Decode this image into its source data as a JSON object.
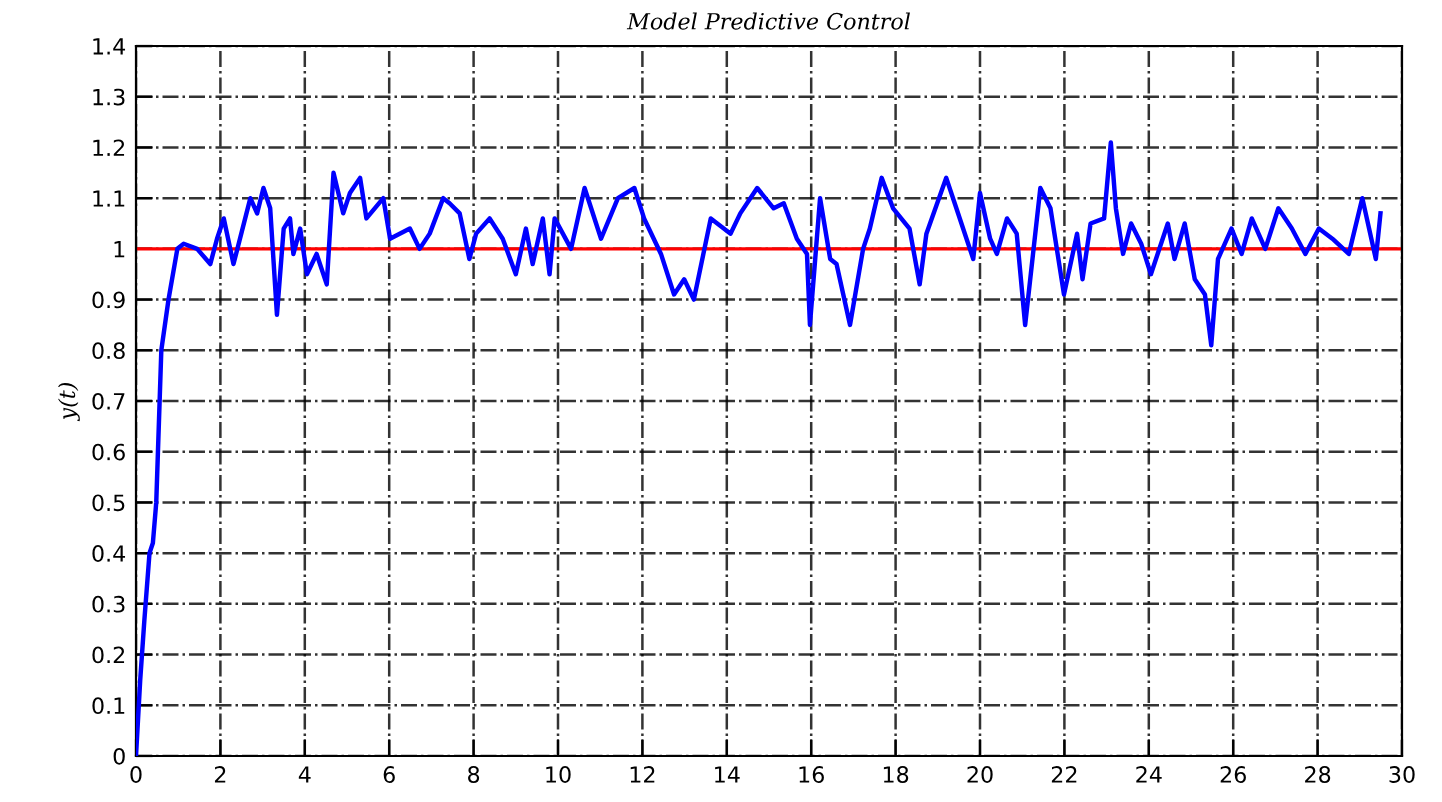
{
  "chart_data": {
    "type": "line",
    "title": "Model Predictive Control",
    "ylabel": "y(t)",
    "series": [
      {
        "color": "#0000ff",
        "x": [
          0,
          0.1,
          0.2,
          0.32,
          0.4,
          0.48,
          0.6,
          0.77,
          0.98,
          1.13,
          1.45,
          1.76,
          1.92,
          2.08,
          2.31,
          2.71,
          2.87,
          3.02,
          3.18,
          3.34,
          3.5,
          3.65,
          3.73,
          3.89,
          4.05,
          4.28,
          4.52,
          4.68,
          4.91,
          5.07,
          5.31,
          5.46,
          5.86,
          6.02,
          6.49,
          6.72,
          6.96,
          7.28,
          7.43,
          7.67,
          7.9,
          8.06,
          8.38,
          8.69,
          9.0,
          9.24,
          9.4,
          9.64,
          9.8,
          9.92,
          10.31,
          10.63,
          11.02,
          11.42,
          11.81,
          12.04,
          12.44,
          12.75,
          12.99,
          13.22,
          13.62,
          14.09,
          14.32,
          14.72,
          15.11,
          15.35,
          15.66,
          15.9,
          15.97,
          16.21,
          16.45,
          16.6,
          16.92,
          17.23,
          17.39,
          17.67,
          17.94,
          18.33,
          18.57,
          18.73,
          19.2,
          19.44,
          19.84,
          20.0,
          20.24,
          20.4,
          20.64,
          20.87,
          21.07,
          21.43,
          21.67,
          21.99,
          22.3,
          22.43,
          22.62,
          22.94,
          23.1,
          23.22,
          23.39,
          23.58,
          23.82,
          24.05,
          24.45,
          24.61,
          24.85,
          25.09,
          25.33,
          25.48,
          25.64,
          25.96,
          26.2,
          26.44,
          26.76,
          27.07,
          27.39,
          27.71,
          28.03,
          28.35,
          28.74,
          29.06,
          29.38,
          29.49
        ],
        "values": [
          0,
          0.15,
          0.27,
          0.4,
          0.42,
          0.5,
          0.8,
          0.9,
          1.0,
          1.01,
          1.0,
          0.97,
          1.02,
          1.06,
          0.97,
          1.1,
          1.07,
          1.12,
          1.08,
          0.87,
          1.04,
          1.06,
          0.99,
          1.04,
          0.95,
          0.99,
          0.93,
          1.15,
          1.07,
          1.11,
          1.14,
          1.06,
          1.1,
          1.02,
          1.04,
          1.0,
          1.03,
          1.1,
          1.09,
          1.07,
          0.98,
          1.03,
          1.06,
          1.02,
          0.95,
          1.04,
          0.97,
          1.06,
          0.95,
          1.06,
          1.0,
          1.12,
          1.02,
          1.1,
          1.12,
          1.06,
          0.99,
          0.91,
          0.94,
          0.9,
          1.06,
          1.03,
          1.07,
          1.12,
          1.08,
          1.09,
          1.02,
          0.99,
          0.85,
          1.1,
          0.98,
          0.97,
          0.85,
          1.0,
          1.04,
          1.14,
          1.08,
          1.04,
          0.93,
          1.03,
          1.14,
          1.08,
          0.98,
          1.11,
          1.02,
          0.99,
          1.06,
          1.03,
          0.85,
          1.12,
          1.08,
          0.91,
          1.03,
          0.94,
          1.05,
          1.06,
          1.21,
          1.08,
          0.99,
          1.05,
          1.01,
          0.95,
          1.05,
          0.98,
          1.05,
          0.94,
          0.91,
          0.81,
          0.98,
          1.04,
          0.99,
          1.06,
          1.0,
          1.08,
          1.04,
          0.99,
          1.04,
          1.02,
          0.99,
          1.1,
          0.98,
          1.07
        ]
      }
    ],
    "ref_lines": [
      {
        "axis": "y",
        "value": 1,
        "color": "#ff0000"
      }
    ],
    "xlim": [
      0,
      30
    ],
    "xticks": [
      0,
      2,
      4,
      6,
      8,
      10,
      12,
      14,
      16,
      18,
      20,
      22,
      24,
      26,
      28,
      30
    ],
    "ylim": [
      0,
      1.4
    ],
    "yticks": [
      0,
      0.1,
      0.2,
      0.3,
      0.4,
      0.5,
      0.6,
      0.7,
      0.8,
      0.9,
      1,
      1.1,
      1.2,
      1.3,
      1.4
    ],
    "grid": true,
    "legend": false,
    "marker": "none",
    "line_style": "solid"
  }
}
